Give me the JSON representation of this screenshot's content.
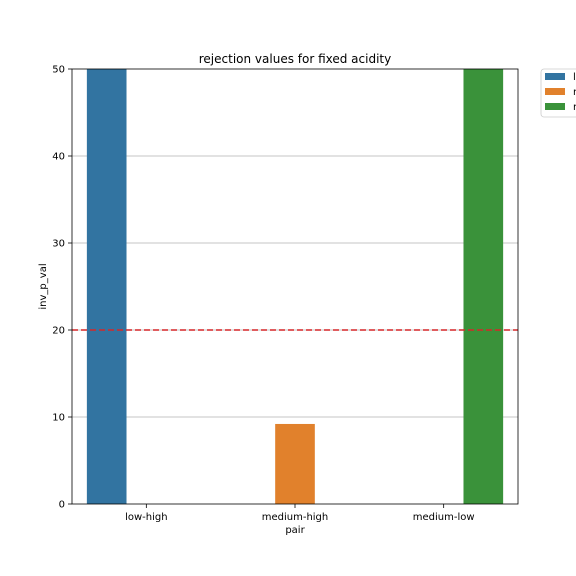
{
  "chart_data": {
    "type": "bar",
    "title": "rejection values for fixed acidity",
    "xlabel": "pair",
    "ylabel": "inv_p_val",
    "categories": [
      "low-high",
      "medium-high",
      "medium-low"
    ],
    "series": [
      {
        "name": "l",
        "color": "#3274a1",
        "values": [
          50,
          null,
          null
        ]
      },
      {
        "name": "r",
        "color": "#e1812c",
        "values": [
          null,
          9.2,
          null
        ]
      },
      {
        "name": "r",
        "color": "#3a923a",
        "values": [
          null,
          null,
          50
        ]
      }
    ],
    "ylim": [
      0,
      50
    ],
    "yticks": [
      0,
      10,
      20,
      30,
      40,
      50
    ],
    "grid": "y",
    "reference_line": {
      "y": 20,
      "color": "#d62728",
      "style": "dashed"
    },
    "legend_position": "outside-right"
  }
}
